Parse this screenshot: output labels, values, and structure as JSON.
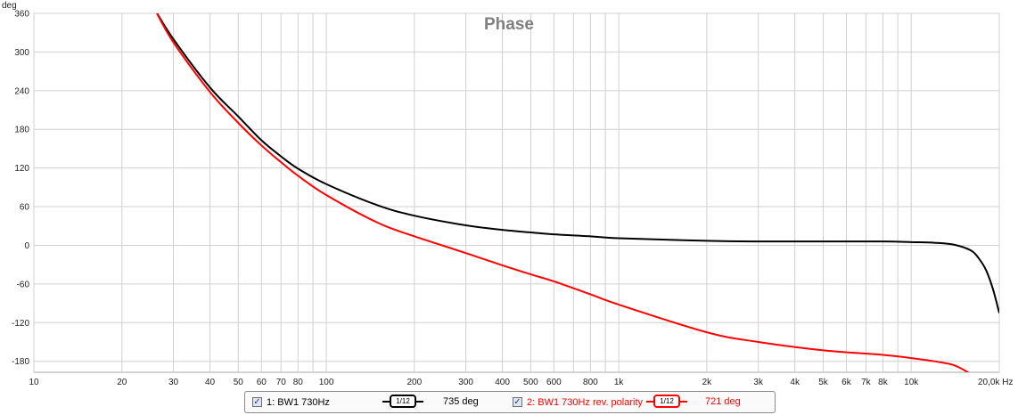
{
  "chart_data": {
    "type": "line",
    "title": "Phase",
    "ylabel": "deg",
    "xlabel": "Hz",
    "x_scale": "log",
    "xlim": [
      10,
      20000
    ],
    "ylim": [
      -197,
      360
    ],
    "grid": true,
    "y_ticks": [
      360,
      300,
      240,
      180,
      120,
      60,
      0,
      -60,
      -120,
      -180
    ],
    "x_tick_labels": [
      {
        "f": 10,
        "label": "10"
      },
      {
        "f": 20,
        "label": "20"
      },
      {
        "f": 30,
        "label": "30"
      },
      {
        "f": 40,
        "label": "40"
      },
      {
        "f": 50,
        "label": "50"
      },
      {
        "f": 60,
        "label": "60"
      },
      {
        "f": 70,
        "label": "70"
      },
      {
        "f": 80,
        "label": "80"
      },
      {
        "f": 100,
        "label": "100"
      },
      {
        "f": 200,
        "label": "200"
      },
      {
        "f": 300,
        "label": "300"
      },
      {
        "f": 400,
        "label": "400"
      },
      {
        "f": 500,
        "label": "500"
      },
      {
        "f": 600,
        "label": "600"
      },
      {
        "f": 800,
        "label": "800"
      },
      {
        "f": 1000,
        "label": "1k"
      },
      {
        "f": 2000,
        "label": "2k"
      },
      {
        "f": 3000,
        "label": "3k"
      },
      {
        "f": 4000,
        "label": "4k"
      },
      {
        "f": 5000,
        "label": "5k"
      },
      {
        "f": 6000,
        "label": "6k"
      },
      {
        "f": 7000,
        "label": "7k"
      },
      {
        "f": 8000,
        "label": "8k"
      },
      {
        "f": 10000,
        "label": "10k"
      },
      {
        "f": 20000,
        "label": "20,0k Hz"
      }
    ],
    "series": [
      {
        "name": "1: BW1 730Hz",
        "color": "#000000",
        "x": [
          26,
          30,
          40,
          50,
          60,
          70,
          80,
          100,
          150,
          200,
          300,
          400,
          500,
          600,
          800,
          1000,
          2000,
          3000,
          5000,
          8000,
          10000,
          12000,
          14000,
          16000,
          17000,
          18000,
          19000,
          20000
        ],
        "y": [
          365,
          320,
          245,
          200,
          163,
          138,
          119,
          95,
          62,
          46,
          31,
          24,
          20,
          17,
          14,
          11,
          7,
          6,
          6,
          6,
          5,
          4,
          1,
          -8,
          -20,
          -38,
          -67,
          -105
        ]
      },
      {
        "name": "2: BW1 730Hz rev. polarity",
        "color": "#ff0000",
        "x": [
          26,
          30,
          40,
          50,
          60,
          70,
          80,
          100,
          150,
          200,
          300,
          400,
          500,
          600,
          800,
          1000,
          2000,
          3000,
          5000,
          8000,
          10000,
          12000,
          14000,
          16000,
          17000
        ],
        "y": [
          365,
          315,
          238,
          190,
          155,
          129,
          108,
          78,
          35,
          14,
          -12,
          -31,
          -45,
          -56,
          -76,
          -92,
          -135,
          -150,
          -163,
          -170,
          -175,
          -180,
          -186,
          -200,
          -210
        ]
      }
    ]
  },
  "legend": {
    "item1": {
      "checkbox": "✓",
      "label": "1: BW1 730Hz",
      "smoothing": "1/12",
      "readout": "735 deg"
    },
    "item2": {
      "checkbox": "✓",
      "label": "2: BW1 730Hz rev. polarity",
      "smoothing": "1/12",
      "readout": "721 deg"
    }
  }
}
